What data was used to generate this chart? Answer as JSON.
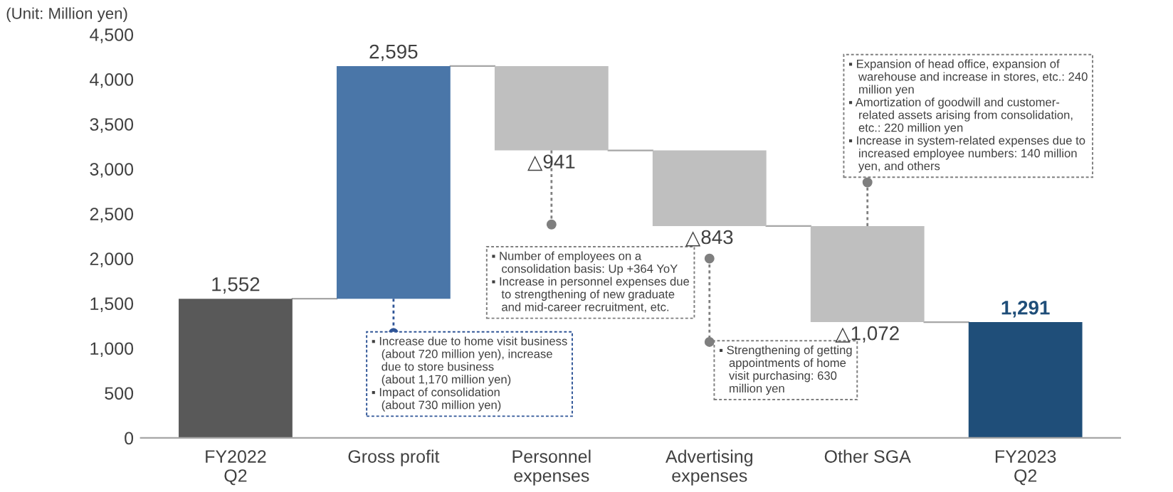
{
  "chart_data": {
    "type": "bar",
    "categories": [
      "FY2022\nQ2",
      "Gross profit",
      "Personnel\nexpenses",
      "Advertising\nexpenses",
      "Other SGA",
      "FY2023\nQ2"
    ],
    "values": [
      1552,
      2595,
      -941,
      -843,
      -1072,
      1291
    ],
    "base": [
      0,
      1552,
      4147,
      3206,
      2363,
      0
    ],
    "colors": [
      "#595959",
      "#4a76a8",
      "#bfbfbf",
      "#bfbfbf",
      "#bfbfbf",
      "#1f4e79"
    ],
    "value_labels": [
      "1,552",
      "2,595",
      "△941",
      "△843",
      "△1,072",
      "1,291"
    ],
    "ylim": [
      0,
      4500
    ],
    "yticks": [
      0,
      {
        "value": 500,
        "label": "500"
      },
      {
        "value": 1000,
        "label": "1,000"
      },
      {
        "value": 1500,
        "label": "1,500"
      },
      {
        "value": 2000,
        "label": "2,000"
      },
      {
        "value": 2500,
        "label": "2,500"
      },
      {
        "value": 3000,
        "label": "3,000"
      },
      {
        "value": 3500,
        "label": "3,500"
      },
      {
        "value": 4000,
        "label": "4,000"
      },
      {
        "value": 4500,
        "label": "4,500"
      }
    ],
    "grid": false,
    "legend": false,
    "annotations": [
      "(Unit: Million yen)",
      "▪ Increase due to home visit business\n   (about 720 million yen), increase\n   due to store business\n   (about 1,170 million yen)\n▪ Impact of consolidation\n   (about 730 million yen)",
      "▪ Number of employees on a\n   consolidation basis: Up +364 YoY\n▪ Increase in personnel expenses due\n   to strengthening of new graduate\n   and mid-career recruitment, etc.",
      "▪ Strengthening of getting\n   appointments of home\n   visit purchasing: 630\n   million yen",
      "▪ Expansion of head office, expansion of\n   warehouse and increase in stores, etc.: 240\n   million yen\n▪ Amortization of goodwill and customer-\n   related assets arising from consolidation,\n   etc.: 220 million yen\n▪ Increase in system-related expenses due to\n   increased employee numbers: 140 million\n   yen, and others"
    ]
  }
}
